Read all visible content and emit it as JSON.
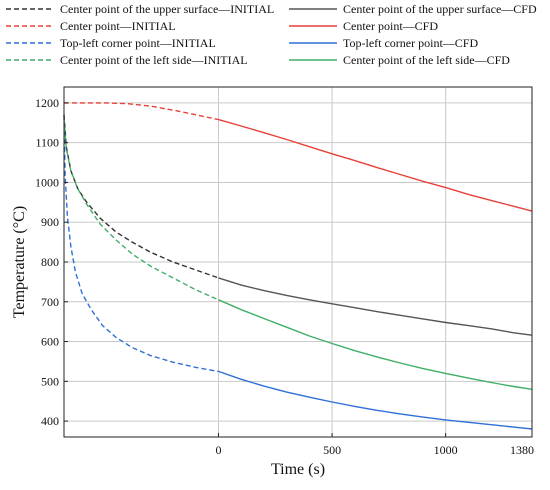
{
  "chart_data": {
    "type": "line",
    "xlabel": "Time (s)",
    "ylabel": "Temperature (°C)",
    "xlim": [
      -680,
      1380
    ],
    "ylim": [
      360,
      1240
    ],
    "x_ticks": [
      0,
      500,
      1000,
      1380
    ],
    "x_tick_labels": [
      "0",
      "500",
      "1000",
      "1380"
    ],
    "y_ticks": [
      400,
      500,
      600,
      700,
      800,
      900,
      1000,
      1100,
      1200
    ],
    "y_tick_labels": [
      "400",
      "500",
      "600",
      "700",
      "800",
      "900",
      "1000",
      "1100",
      "1200"
    ],
    "grid": true,
    "legend_position": "top",
    "series": [
      {
        "name": "Center point of the upper surface—INITIAL",
        "color": "#333333",
        "dash": true,
        "x": [
          -680,
          -670,
          -650,
          -620,
          -580,
          -520,
          -450,
          -380,
          -300,
          -200,
          -100,
          0
        ],
        "y": [
          1170,
          1090,
          1030,
          985,
          950,
          910,
          875,
          850,
          825,
          800,
          780,
          760
        ]
      },
      {
        "name": "Center point of the upper surface—CFD",
        "color": "#555555",
        "dash": false,
        "x": [
          0,
          100,
          200,
          300,
          400,
          500,
          600,
          700,
          800,
          900,
          1000,
          1100,
          1200,
          1300,
          1380
        ],
        "y": [
          760,
          742,
          728,
          716,
          705,
          695,
          685,
          675,
          666,
          657,
          648,
          640,
          632,
          622,
          616
        ]
      },
      {
        "name": "Center point—INITIAL",
        "color": "#e8413a",
        "dash": true,
        "x": [
          -680,
          -600,
          -500,
          -400,
          -300,
          -200,
          -100,
          0
        ],
        "y": [
          1200,
          1200,
          1200,
          1198,
          1192,
          1182,
          1170,
          1158
        ]
      },
      {
        "name": "Center point—CFD",
        "color": "#e8413a",
        "dash": false,
        "x": [
          0,
          100,
          200,
          300,
          400,
          500,
          600,
          700,
          800,
          900,
          1000,
          1100,
          1200,
          1300,
          1380
        ],
        "y": [
          1158,
          1142,
          1125,
          1108,
          1090,
          1072,
          1055,
          1037,
          1020,
          1003,
          987,
          970,
          955,
          940,
          928
        ]
      },
      {
        "name": "Top-left corner point—INITIAL",
        "color": "#2e6fd8",
        "dash": true,
        "x": [
          -680,
          -675,
          -665,
          -650,
          -630,
          -600,
          -560,
          -510,
          -450,
          -380,
          -300,
          -200,
          -100,
          0
        ],
        "y": [
          1170,
          1020,
          915,
          840,
          775,
          720,
          680,
          640,
          610,
          585,
          565,
          548,
          535,
          525
        ]
      },
      {
        "name": "Top-left corner point—CFD",
        "color": "#2e6fd8",
        "dash": false,
        "x": [
          0,
          100,
          200,
          300,
          400,
          500,
          600,
          700,
          800,
          900,
          1000,
          1100,
          1200,
          1300,
          1380
        ],
        "y": [
          525,
          505,
          488,
          473,
          460,
          448,
          437,
          427,
          418,
          410,
          403,
          397,
          391,
          385,
          380
        ]
      },
      {
        "name": "Center point of the left side—INITIAL",
        "color": "#3fae66",
        "dash": true,
        "x": [
          -680,
          -670,
          -650,
          -620,
          -580,
          -520,
          -450,
          -380,
          -300,
          -200,
          -100,
          0
        ],
        "y": [
          1160,
          1085,
          1030,
          985,
          945,
          895,
          855,
          820,
          790,
          760,
          730,
          705
        ]
      },
      {
        "name": "Center point of the left side—CFD",
        "color": "#3fae66",
        "dash": false,
        "x": [
          0,
          100,
          200,
          300,
          400,
          500,
          600,
          700,
          800,
          900,
          1000,
          1100,
          1200,
          1300,
          1380
        ],
        "y": [
          705,
          680,
          658,
          636,
          614,
          595,
          577,
          561,
          546,
          532,
          520,
          508,
          497,
          487,
          480
        ]
      }
    ]
  }
}
